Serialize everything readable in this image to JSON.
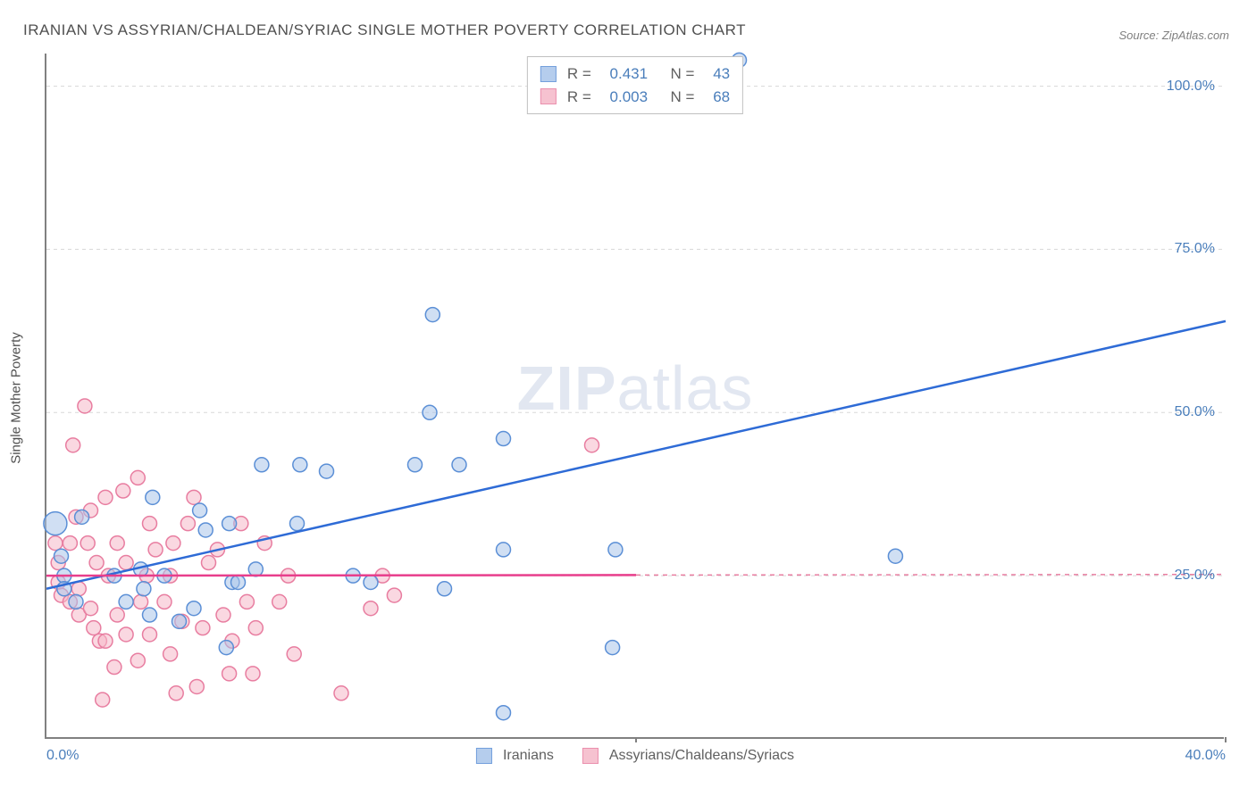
{
  "title": "IRANIAN VS ASSYRIAN/CHALDEAN/SYRIAC SINGLE MOTHER POVERTY CORRELATION CHART",
  "source": "Source: ZipAtlas.com",
  "y_axis_label": "Single Mother Poverty",
  "watermark_bold": "ZIP",
  "watermark_rest": "atlas",
  "chart": {
    "type": "scatter",
    "xlim": [
      0,
      40
    ],
    "ylim": [
      0,
      105
    ],
    "x_ticks": [
      0,
      20,
      40
    ],
    "x_tick_labels": [
      "0.0%",
      "",
      "40.0%"
    ],
    "y_ticks": [
      25,
      50,
      75,
      100
    ],
    "y_tick_labels": [
      "25.0%",
      "50.0%",
      "75.0%",
      "100.0%"
    ],
    "grid_color": "#d8d8d8",
    "axis_color": "#808080",
    "background_color": "#ffffff",
    "marker_radius": 8,
    "marker_radius_large": 13,
    "marker_stroke_width": 1.5,
    "line_width": 2.5,
    "series": [
      {
        "name": "Iranians",
        "fill": "#a9c5ea",
        "stroke": "#5b8fd6",
        "fill_opacity": 0.55,
        "line_color": "#2e6bd6",
        "R": "0.431",
        "N": "43",
        "regression": {
          "x1": 0,
          "y1": 23,
          "x2": 40,
          "y2": 64
        },
        "regression_dashed_after_x": null,
        "points": [
          {
            "x": 0.3,
            "y": 33,
            "r": 13
          },
          {
            "x": 1.2,
            "y": 34
          },
          {
            "x": 0.5,
            "y": 28
          },
          {
            "x": 0.6,
            "y": 25
          },
          {
            "x": 0.6,
            "y": 23
          },
          {
            "x": 1.0,
            "y": 21
          },
          {
            "x": 2.3,
            "y": 25
          },
          {
            "x": 2.7,
            "y": 21
          },
          {
            "x": 3.2,
            "y": 26
          },
          {
            "x": 3.3,
            "y": 23
          },
          {
            "x": 3.5,
            "y": 19
          },
          {
            "x": 3.6,
            "y": 37
          },
          {
            "x": 4.0,
            "y": 25
          },
          {
            "x": 4.5,
            "y": 18
          },
          {
            "x": 5.0,
            "y": 20
          },
          {
            "x": 5.2,
            "y": 35
          },
          {
            "x": 5.4,
            "y": 32
          },
          {
            "x": 6.1,
            "y": 14
          },
          {
            "x": 6.2,
            "y": 33
          },
          {
            "x": 6.3,
            "y": 24
          },
          {
            "x": 6.5,
            "y": 24
          },
          {
            "x": 7.1,
            "y": 26
          },
          {
            "x": 7.3,
            "y": 42
          },
          {
            "x": 8.5,
            "y": 33
          },
          {
            "x": 8.6,
            "y": 42
          },
          {
            "x": 9.5,
            "y": 41
          },
          {
            "x": 10.4,
            "y": 25
          },
          {
            "x": 11.0,
            "y": 24
          },
          {
            "x": 12.5,
            "y": 42
          },
          {
            "x": 13.0,
            "y": 50
          },
          {
            "x": 13.1,
            "y": 65
          },
          {
            "x": 13.5,
            "y": 23
          },
          {
            "x": 14.0,
            "y": 42
          },
          {
            "x": 15.5,
            "y": 4
          },
          {
            "x": 15.5,
            "y": 46
          },
          {
            "x": 15.5,
            "y": 29
          },
          {
            "x": 19.2,
            "y": 14
          },
          {
            "x": 19.3,
            "y": 29
          },
          {
            "x": 23.5,
            "y": 104
          },
          {
            "x": 28.8,
            "y": 28
          }
        ]
      },
      {
        "name": "Assyrians/Chaldeans/Syriacs",
        "fill": "#f5b8c8",
        "stroke": "#e87da0",
        "fill_opacity": 0.55,
        "line_color": "#e83e8c",
        "R": "0.003",
        "N": "68",
        "regression": {
          "x1": 0,
          "y1": 25,
          "x2": 40,
          "y2": 25.2
        },
        "regression_dashed_after_x": 20,
        "points": [
          {
            "x": 0.3,
            "y": 30
          },
          {
            "x": 0.4,
            "y": 27
          },
          {
            "x": 0.4,
            "y": 24
          },
          {
            "x": 0.5,
            "y": 22
          },
          {
            "x": 0.8,
            "y": 30
          },
          {
            "x": 0.8,
            "y": 21
          },
          {
            "x": 0.9,
            "y": 45
          },
          {
            "x": 1.0,
            "y": 34
          },
          {
            "x": 1.1,
            "y": 23
          },
          {
            "x": 1.1,
            "y": 19
          },
          {
            "x": 1.3,
            "y": 51
          },
          {
            "x": 1.4,
            "y": 30
          },
          {
            "x": 1.5,
            "y": 35
          },
          {
            "x": 1.5,
            "y": 20
          },
          {
            "x": 1.6,
            "y": 17
          },
          {
            "x": 1.7,
            "y": 27
          },
          {
            "x": 1.8,
            "y": 15
          },
          {
            "x": 1.9,
            "y": 6
          },
          {
            "x": 2.0,
            "y": 37
          },
          {
            "x": 2.0,
            "y": 15
          },
          {
            "x": 2.1,
            "y": 25
          },
          {
            "x": 2.3,
            "y": 11
          },
          {
            "x": 2.4,
            "y": 30
          },
          {
            "x": 2.4,
            "y": 19
          },
          {
            "x": 2.6,
            "y": 38
          },
          {
            "x": 2.7,
            "y": 27
          },
          {
            "x": 2.7,
            "y": 16
          },
          {
            "x": 3.1,
            "y": 40
          },
          {
            "x": 3.1,
            "y": 12
          },
          {
            "x": 3.2,
            "y": 21
          },
          {
            "x": 3.4,
            "y": 25
          },
          {
            "x": 3.5,
            "y": 33
          },
          {
            "x": 3.5,
            "y": 16
          },
          {
            "x": 3.7,
            "y": 29
          },
          {
            "x": 4.0,
            "y": 21
          },
          {
            "x": 4.2,
            "y": 13
          },
          {
            "x": 4.2,
            "y": 25
          },
          {
            "x": 4.3,
            "y": 30
          },
          {
            "x": 4.4,
            "y": 7
          },
          {
            "x": 4.6,
            "y": 18
          },
          {
            "x": 4.8,
            "y": 33
          },
          {
            "x": 5.0,
            "y": 37
          },
          {
            "x": 5.1,
            "y": 8
          },
          {
            "x": 5.3,
            "y": 17
          },
          {
            "x": 5.5,
            "y": 27
          },
          {
            "x": 5.8,
            "y": 29
          },
          {
            "x": 6.0,
            "y": 19
          },
          {
            "x": 6.2,
            "y": 10
          },
          {
            "x": 6.3,
            "y": 15
          },
          {
            "x": 6.6,
            "y": 33
          },
          {
            "x": 6.8,
            "y": 21
          },
          {
            "x": 7.0,
            "y": 10
          },
          {
            "x": 7.1,
            "y": 17
          },
          {
            "x": 7.4,
            "y": 30
          },
          {
            "x": 7.9,
            "y": 21
          },
          {
            "x": 8.2,
            "y": 25
          },
          {
            "x": 8.4,
            "y": 13
          },
          {
            "x": 10.0,
            "y": 7
          },
          {
            "x": 11.0,
            "y": 20
          },
          {
            "x": 11.4,
            "y": 25
          },
          {
            "x": 11.8,
            "y": 22
          },
          {
            "x": 18.5,
            "y": 45
          }
        ]
      }
    ]
  },
  "stats_legend": {
    "R_label": "R =",
    "N_label": "N ="
  },
  "bottom_legend_labels": [
    "Iranians",
    "Assyrians/Chaldeans/Syriacs"
  ]
}
